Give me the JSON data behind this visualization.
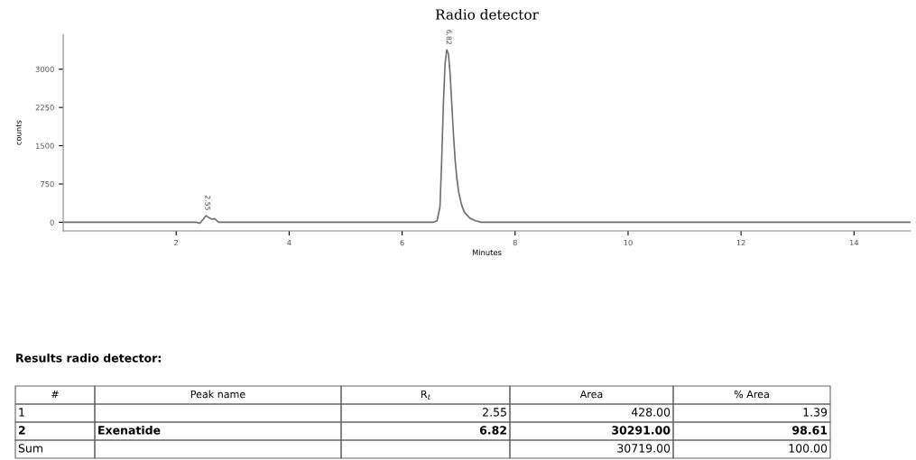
{
  "chart_data": {
    "type": "line",
    "title": "Radio detector",
    "xlabel": "Minutes",
    "ylabel": "counts",
    "x": [
      0,
      1,
      2,
      2.35,
      2.42,
      2.48,
      2.53,
      2.58,
      2.63,
      2.68,
      2.75,
      3,
      4,
      5,
      6,
      6.55,
      6.62,
      6.67,
      6.7,
      6.73,
      6.76,
      6.79,
      6.82,
      6.85,
      6.88,
      6.91,
      6.94,
      6.97,
      7.0,
      7.05,
      7.1,
      7.2,
      7.3,
      7.4,
      8,
      10,
      12,
      14,
      15
    ],
    "series": [
      {
        "color": "#707070",
        "values": [
          0,
          0,
          0,
          0,
          -20,
          60,
          130,
          90,
          60,
          70,
          0,
          0,
          0,
          0,
          0,
          0,
          30,
          300,
          1200,
          2300,
          3100,
          3380,
          3300,
          2900,
          2300,
          1700,
          1200,
          850,
          600,
          350,
          200,
          80,
          30,
          0,
          0,
          0,
          0,
          0,
          0
        ]
      }
    ],
    "xlim": [
      0,
      15
    ],
    "ylim": [
      -170,
      3680
    ],
    "xticks": [
      2,
      4,
      6,
      8,
      10,
      12,
      14
    ],
    "yticks": [
      0,
      750,
      1500,
      2250,
      3000
    ],
    "grid": false,
    "marker": "none",
    "line_style": "solid",
    "annotations": [
      {
        "text": "2.55",
        "x": 2.55,
        "y": 130
      },
      {
        "text": "6.82",
        "x": 6.82,
        "y": 3380
      },
      "Results radio detector:",
      "#",
      "Peak name",
      "R$_{t}$",
      "Area",
      "% Area",
      "1",
      null,
      "2.55",
      "428.00",
      "1.39",
      "2",
      "Exenatide",
      "6.82",
      "30291.00",
      "98.61",
      "Sum",
      null,
      null,
      "30719.00",
      "100.00"
    ]
  }
}
